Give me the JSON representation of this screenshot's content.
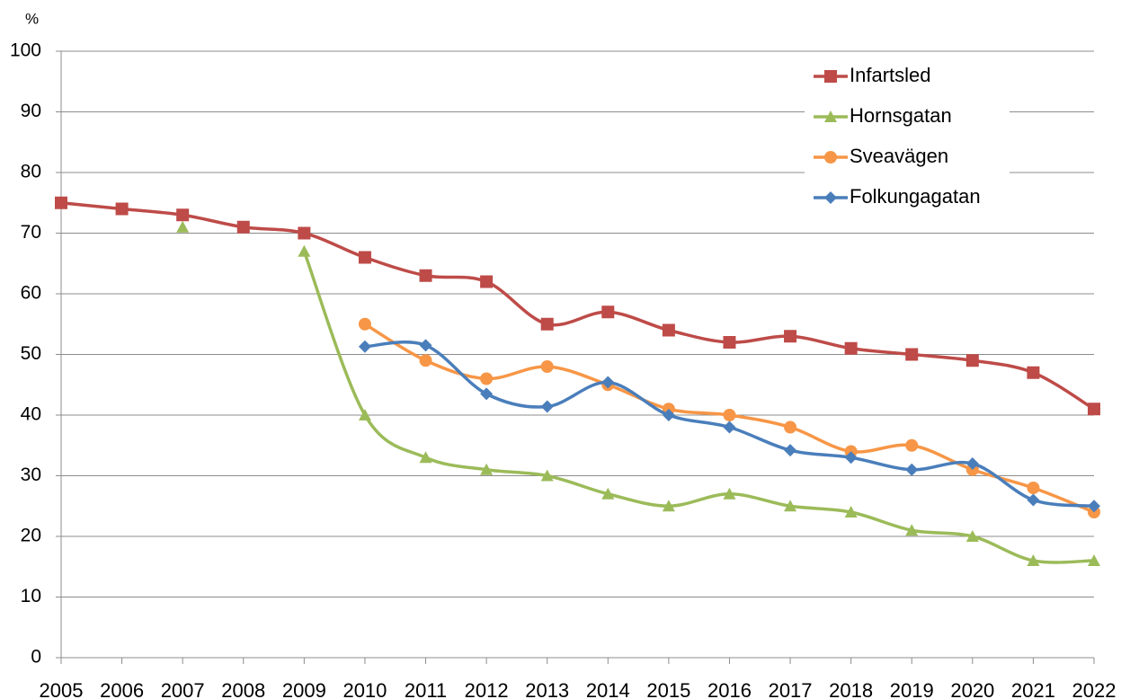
{
  "chart_data": {
    "type": "line",
    "y_label": "%",
    "x": [
      2005,
      2006,
      2007,
      2008,
      2009,
      2010,
      2011,
      2012,
      2013,
      2014,
      2015,
      2016,
      2017,
      2018,
      2019,
      2020,
      2021,
      2022
    ],
    "xlim": [
      2005,
      2022
    ],
    "xticks": [
      2005,
      2006,
      2007,
      2008,
      2009,
      2010,
      2011,
      2012,
      2013,
      2014,
      2015,
      2016,
      2017,
      2018,
      2019,
      2020,
      2021,
      2022
    ],
    "ylim": [
      0,
      100
    ],
    "yticks": [
      0,
      10,
      20,
      30,
      40,
      50,
      60,
      70,
      80,
      90,
      100
    ],
    "grid": true,
    "legend": "upper right",
    "series": [
      {
        "name": "Infartsled",
        "color": "#be4b48",
        "marker": "square",
        "values": [
          75,
          74,
          73,
          71,
          70,
          66,
          63,
          62,
          55,
          57,
          54,
          52,
          53,
          51,
          50,
          49,
          47,
          41
        ]
      },
      {
        "name": "Hornsgatan",
        "color": "#9bbb59",
        "marker": "triangle",
        "values": [
          null,
          null,
          71,
          null,
          67,
          40,
          33,
          31,
          30,
          27,
          25,
          27,
          25,
          24,
          21,
          20,
          16,
          16
        ]
      },
      {
        "name": "Sveavägen",
        "color": "#f79646",
        "marker": "circle",
        "values": [
          null,
          null,
          null,
          null,
          null,
          55,
          49,
          46,
          48,
          45,
          41,
          40,
          38,
          34,
          35,
          31,
          28,
          24
        ]
      },
      {
        "name": "Folkungagatan",
        "color": "#4a7ebb",
        "marker": "diamond",
        "values": [
          null,
          null,
          null,
          null,
          null,
          51.3,
          51.5,
          43.5,
          41.4,
          45.4,
          40,
          38,
          34.2,
          33,
          31,
          32,
          26,
          25
        ]
      }
    ]
  }
}
